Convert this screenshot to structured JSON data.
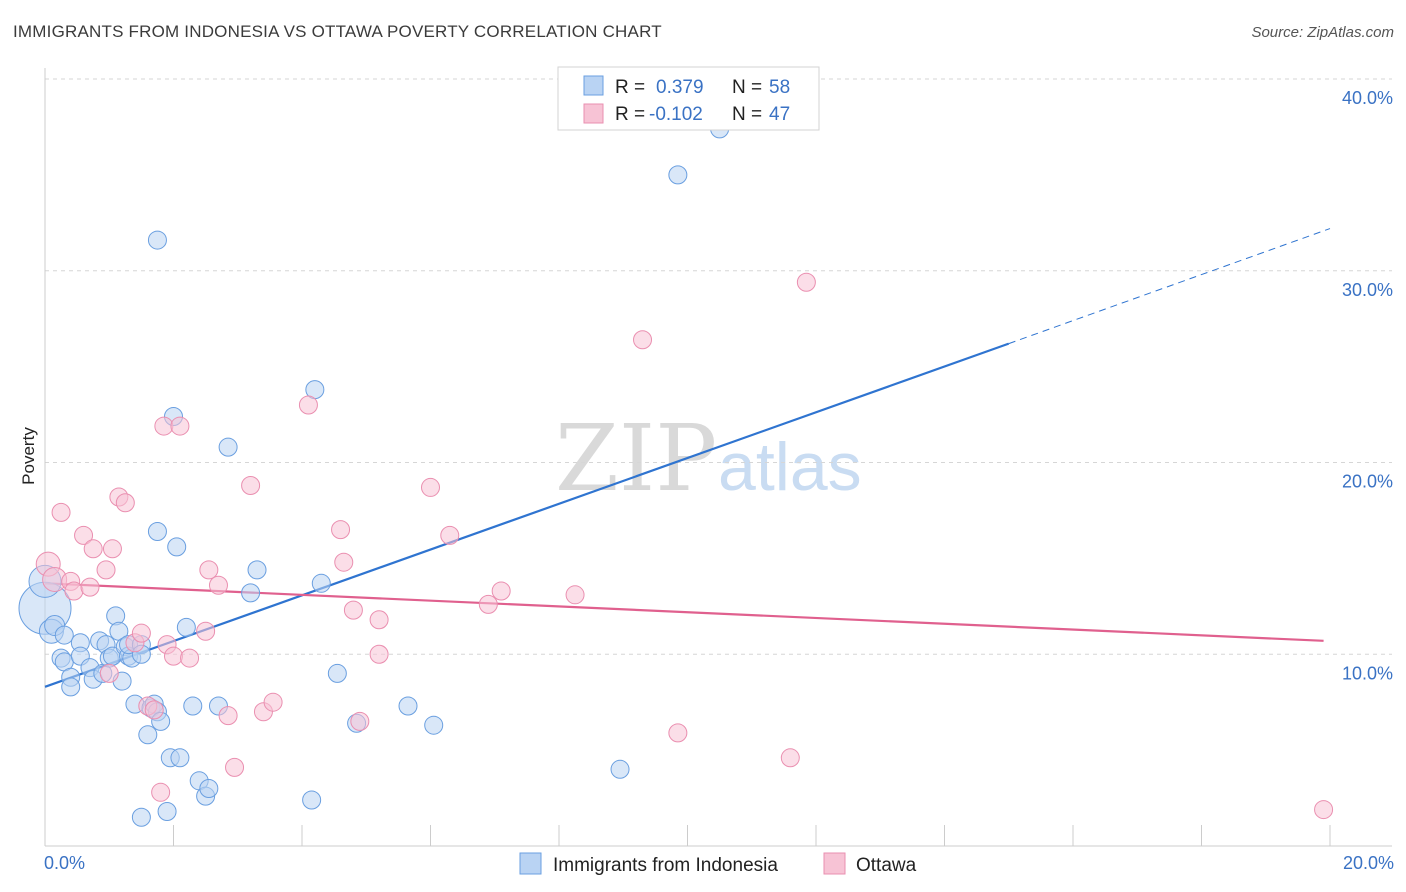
{
  "header": {
    "title": "IMMIGRANTS FROM INDONESIA VS OTTAWA POVERTY CORRELATION CHART",
    "source": "Source: ZipAtlas.com"
  },
  "watermark": {
    "zip": "ZIP",
    "atlas": "atlas"
  },
  "chart_data": {
    "type": "scatter",
    "title": "IMMIGRANTS FROM INDONESIA VS OTTAWA POVERTY CORRELATION CHART",
    "xlabel": "",
    "ylabel": "Poverty",
    "xlim": [
      0,
      20
    ],
    "ylim": [
      0,
      40
    ],
    "x_tick_labels": [
      "0.0%",
      "20.0%"
    ],
    "y_ticks": [
      10,
      20,
      30,
      40
    ],
    "y_tick_labels": [
      "10.0%",
      "20.0%",
      "30.0%",
      "40.0%"
    ],
    "grid": true,
    "legend_position": "bottom",
    "stats_box": [
      {
        "r_label": "R = ",
        "r_value": "0.379",
        "n_label": "N = ",
        "n_value": "58"
      },
      {
        "r_label": "R = ",
        "r_value": "-0.102",
        "n_label": "N = ",
        "n_value": "47"
      }
    ],
    "series": [
      {
        "name": "Immigrants from Indonesia",
        "color": "#6a9fe0",
        "fill": "#b9d3f3",
        "line_color": "#2f74d0",
        "trend": {
          "x0": 0,
          "y0": 8.3,
          "x1": 15,
          "y1": 26.2,
          "dash_x1": 20,
          "dash_y1": 32.2
        },
        "points": [
          [
            0.0,
            12.4,
            26
          ],
          [
            0.0,
            13.8,
            16
          ],
          [
            0.1,
            11.2,
            12
          ],
          [
            0.15,
            11.5,
            10
          ],
          [
            0.3,
            11.0,
            9
          ],
          [
            0.25,
            9.8,
            9
          ],
          [
            0.3,
            9.6,
            9
          ],
          [
            0.4,
            8.8,
            9
          ],
          [
            0.4,
            8.3,
            9
          ],
          [
            0.55,
            10.6,
            9
          ],
          [
            0.55,
            9.9,
            9
          ],
          [
            0.7,
            9.3,
            9
          ],
          [
            0.75,
            8.7,
            9
          ],
          [
            0.85,
            10.7,
            9
          ],
          [
            0.9,
            9.0,
            9
          ],
          [
            0.95,
            10.5,
            9
          ],
          [
            1.0,
            9.8,
            9
          ],
          [
            1.05,
            9.9,
            9
          ],
          [
            1.1,
            12.0,
            9
          ],
          [
            1.15,
            11.2,
            9
          ],
          [
            1.2,
            8.6,
            9
          ],
          [
            1.25,
            10.4,
            9
          ],
          [
            1.3,
            9.9,
            9
          ],
          [
            1.35,
            9.8,
            9
          ],
          [
            1.3,
            10.5,
            9
          ],
          [
            1.4,
            7.4,
            9
          ],
          [
            1.5,
            10.5,
            9
          ],
          [
            1.5,
            10.0,
            9
          ],
          [
            1.6,
            5.8,
            9
          ],
          [
            1.65,
            7.2,
            9
          ],
          [
            1.7,
            7.4,
            9
          ],
          [
            1.75,
            7.0,
            9
          ],
          [
            1.8,
            6.5,
            9
          ],
          [
            1.9,
            1.8,
            9
          ],
          [
            1.75,
            31.6,
            9
          ],
          [
            1.75,
            16.4,
            9
          ],
          [
            1.95,
            4.6,
            9
          ],
          [
            2.0,
            22.4,
            9
          ],
          [
            2.05,
            15.6,
            9
          ],
          [
            2.1,
            4.6,
            9
          ],
          [
            2.2,
            11.4,
            9
          ],
          [
            2.3,
            7.3,
            9
          ],
          [
            2.4,
            3.4,
            9
          ],
          [
            2.5,
            2.6,
            9
          ],
          [
            2.55,
            3.0,
            9
          ],
          [
            2.7,
            7.3,
            9
          ],
          [
            2.85,
            20.8,
            9
          ],
          [
            3.2,
            13.2,
            9
          ],
          [
            3.3,
            14.4,
            9
          ],
          [
            4.15,
            2.4,
            9
          ],
          [
            4.2,
            23.8,
            9
          ],
          [
            4.3,
            13.7,
            9
          ],
          [
            4.55,
            9.0,
            9
          ],
          [
            4.85,
            6.4,
            9
          ],
          [
            5.65,
            7.3,
            9
          ],
          [
            6.05,
            6.3,
            9
          ],
          [
            8.95,
            4.0,
            9
          ],
          [
            9.85,
            35.0,
            9
          ],
          [
            10.5,
            37.4,
            9
          ],
          [
            1.5,
            1.5,
            9
          ]
        ]
      },
      {
        "name": "Ottawa",
        "color": "#ea8fb0",
        "fill": "#f7c3d5",
        "line_color": "#e0608e",
        "trend": {
          "x0": 0,
          "y0": 13.7,
          "x1": 19.9,
          "y1": 10.7
        },
        "points": [
          [
            0.05,
            14.7,
            12
          ],
          [
            0.15,
            13.9,
            12
          ],
          [
            0.25,
            17.4,
            9
          ],
          [
            0.4,
            13.8,
            9
          ],
          [
            0.45,
            13.3,
            9
          ],
          [
            0.6,
            16.2,
            9
          ],
          [
            0.7,
            13.5,
            9
          ],
          [
            0.75,
            15.5,
            9
          ],
          [
            0.95,
            14.4,
            9
          ],
          [
            1.0,
            9.0,
            9
          ],
          [
            1.05,
            15.5,
            9
          ],
          [
            1.15,
            18.2,
            9
          ],
          [
            1.25,
            17.9,
            9
          ],
          [
            1.4,
            10.6,
            9
          ],
          [
            1.5,
            11.1,
            9
          ],
          [
            1.6,
            7.3,
            9
          ],
          [
            1.7,
            7.1,
            9
          ],
          [
            1.8,
            2.8,
            9
          ],
          [
            1.85,
            21.9,
            9
          ],
          [
            1.9,
            10.5,
            9
          ],
          [
            2.0,
            9.9,
            9
          ],
          [
            2.1,
            21.9,
            9
          ],
          [
            2.25,
            9.8,
            9
          ],
          [
            2.5,
            11.2,
            9
          ],
          [
            2.55,
            14.4,
            9
          ],
          [
            2.7,
            13.6,
            9
          ],
          [
            2.85,
            6.8,
            9
          ],
          [
            2.95,
            4.1,
            9
          ],
          [
            3.2,
            18.8,
            9
          ],
          [
            3.4,
            7.0,
            9
          ],
          [
            3.55,
            7.5,
            9
          ],
          [
            4.1,
            23.0,
            9
          ],
          [
            4.6,
            16.5,
            9
          ],
          [
            4.65,
            14.8,
            9
          ],
          [
            4.8,
            12.3,
            9
          ],
          [
            4.9,
            6.5,
            9
          ],
          [
            5.2,
            10.0,
            9
          ],
          [
            5.2,
            11.8,
            9
          ],
          [
            6.0,
            18.7,
            9
          ],
          [
            6.3,
            16.2,
            9
          ],
          [
            6.9,
            12.6,
            9
          ],
          [
            7.1,
            13.3,
            9
          ],
          [
            8.25,
            13.1,
            9
          ],
          [
            9.3,
            26.4,
            9
          ],
          [
            9.85,
            5.9,
            9
          ],
          [
            11.6,
            4.6,
            9
          ],
          [
            11.85,
            29.4,
            9
          ],
          [
            19.9,
            1.9,
            9
          ]
        ]
      }
    ]
  },
  "legend": [
    {
      "label": "Immigrants from Indonesia",
      "fill": "#b9d3f3",
      "stroke": "#6a9fe0"
    },
    {
      "label": "Ottawa",
      "fill": "#f7c3d5",
      "stroke": "#ea8fb0"
    }
  ],
  "colors": {
    "tick_text": "#3a72c4",
    "grid": "#d6d6d6"
  }
}
